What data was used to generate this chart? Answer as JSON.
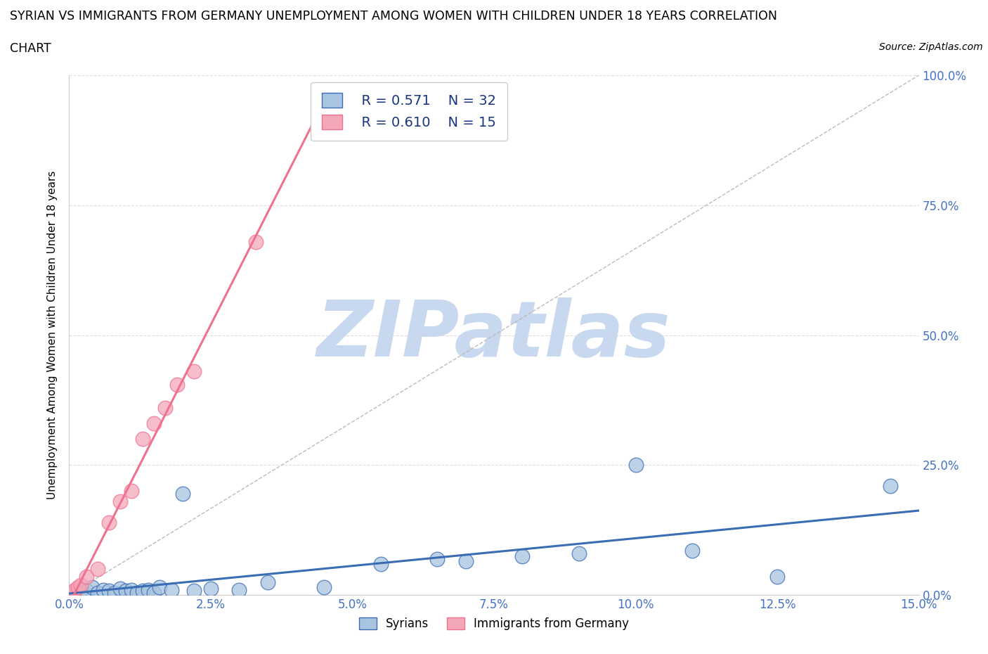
{
  "title_line1": "SYRIAN VS IMMIGRANTS FROM GERMANY UNEMPLOYMENT AMONG WOMEN WITH CHILDREN UNDER 18 YEARS CORRELATION",
  "title_line2": "CHART",
  "source": "Source: ZipAtlas.com",
  "ylabel": "Unemployment Among Women with Children Under 18 years",
  "xlim": [
    0.0,
    15.0
  ],
  "ylim": [
    0.0,
    100.0
  ],
  "xticks": [
    0.0,
    2.5,
    5.0,
    7.5,
    10.0,
    12.5,
    15.0
  ],
  "yticks": [
    0.0,
    25.0,
    50.0,
    75.0,
    100.0
  ],
  "syrians_R": 0.571,
  "syrians_N": 32,
  "germany_R": 0.61,
  "germany_N": 15,
  "syrians_color": "#a8c4e0",
  "germany_color": "#f4a7b9",
  "syrians_line_color": "#3b6db5",
  "germany_line_color": "#f07090",
  "watermark": "ZIPatlas",
  "watermark_color": "#c8d8ee",
  "background_color": "#ffffff",
  "grid_color": "#dddddd",
  "syrians_x": [
    0.1,
    0.2,
    0.3,
    0.4,
    0.5,
    0.6,
    0.7,
    0.8,
    0.9,
    1.0,
    1.1,
    1.2,
    1.3,
    1.4,
    1.5,
    1.6,
    1.8,
    2.0,
    2.2,
    2.5,
    3.0,
    3.5,
    4.5,
    5.5,
    6.5,
    7.0,
    8.0,
    9.0,
    10.0,
    11.0,
    12.5,
    14.5
  ],
  "syrians_y": [
    0.5,
    1.0,
    0.8,
    1.5,
    0.5,
    1.0,
    0.8,
    0.5,
    1.2,
    0.8,
    1.0,
    0.5,
    0.8,
    1.0,
    0.5,
    1.5,
    1.0,
    19.5,
    0.8,
    1.2,
    1.0,
    2.5,
    1.5,
    6.0,
    7.0,
    6.5,
    7.5,
    8.0,
    25.0,
    8.5,
    3.5,
    21.0
  ],
  "germany_x": [
    0.05,
    0.1,
    0.15,
    0.2,
    0.3,
    0.5,
    0.7,
    0.9,
    1.1,
    1.3,
    1.5,
    1.7,
    1.9,
    2.2,
    3.3
  ],
  "germany_y": [
    0.5,
    1.0,
    1.5,
    2.0,
    3.5,
    5.0,
    14.0,
    18.0,
    20.0,
    30.0,
    33.0,
    36.0,
    40.5,
    43.0,
    68.0
  ]
}
